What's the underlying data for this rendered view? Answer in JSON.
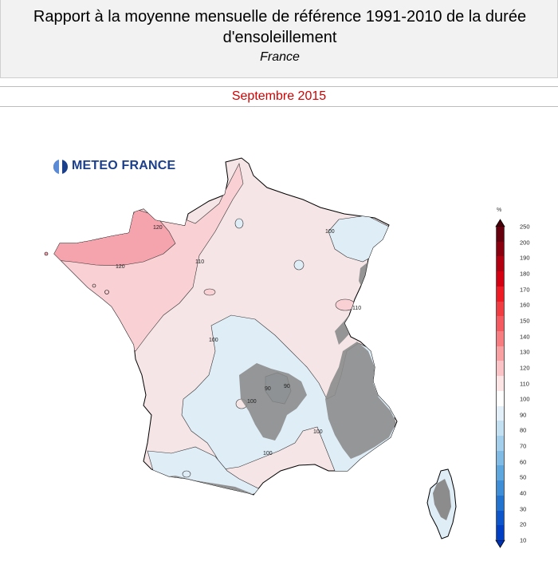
{
  "header": {
    "title_line1": "Rapport à la moyenne mensuelle de référence 1991-2010 de la durée",
    "title_line2": "d'ensoleillement",
    "subtitle": "France"
  },
  "period": "Septembre 2015",
  "logo": {
    "text": "METEO FRANCE",
    "icon": "meteo-france-logo-icon"
  },
  "map": {
    "contour_labels": [
      "120",
      "120",
      "110",
      "100",
      "100",
      "110",
      "100",
      "90",
      "90",
      "100",
      "100"
    ],
    "fill_colors": {
      "above_120": "#f5a3ad",
      "110_120": "#f9d0d4",
      "100_110": "#f5e5e6",
      "90_100": "#dfedf7",
      "80_90": "#c3e0f3",
      "relief": "#8c8c8c"
    }
  },
  "legend": {
    "unit": "%",
    "levels": [
      "250",
      "200",
      "190",
      "180",
      "170",
      "160",
      "150",
      "140",
      "130",
      "120",
      "110",
      "100",
      "90",
      "80",
      "70",
      "60",
      "50",
      "40",
      "30",
      "20",
      "10"
    ],
    "colors": [
      "#66000f",
      "#8a000f",
      "#b30010",
      "#d40012",
      "#ee1b24",
      "#f13c42",
      "#f45a5f",
      "#f77d80",
      "#f9a0a3",
      "#fbc3c5",
      "#fde4e5",
      "#ffffff",
      "#e3f0fa",
      "#c3e0f3",
      "#a3cfec",
      "#80bbe5",
      "#5ea7de",
      "#3d8ed6",
      "#2273d0",
      "#0d55ca",
      "#003ec3"
    ]
  }
}
